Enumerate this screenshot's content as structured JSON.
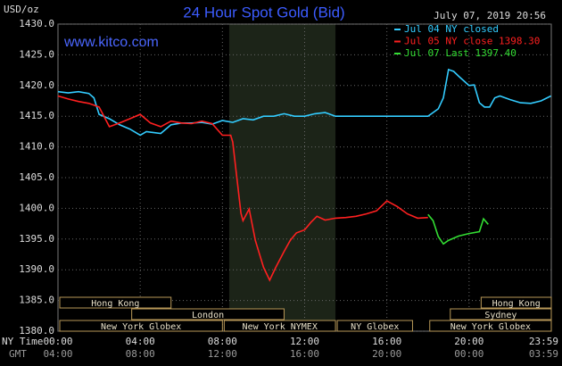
{
  "chart_data": {
    "type": "line",
    "title": "24 Hour Spot Gold (Bid)",
    "site": "www.kitco.com",
    "timestamp": "July 07, 2019 20:56",
    "y_label": "USD/oz",
    "x_row_label": "NY Time",
    "x2_row_label": "GMT",
    "xlim": [
      0,
      24
    ],
    "ylim": [
      1380,
      1430
    ],
    "yticks": [
      {
        "value": 1380,
        "label": "1380.0"
      },
      {
        "value": 1385,
        "label": "1385.0"
      },
      {
        "value": 1390,
        "label": "1390.0"
      },
      {
        "value": 1395,
        "label": "1395.0"
      },
      {
        "value": 1400,
        "label": "1400.0"
      },
      {
        "value": 1405,
        "label": "1405.0"
      },
      {
        "value": 1410,
        "label": "1410.0"
      },
      {
        "value": 1415,
        "label": "1415.0"
      },
      {
        "value": 1420,
        "label": "1420.0"
      },
      {
        "value": 1425,
        "label": "1425.0"
      },
      {
        "value": 1430,
        "label": "1430.0"
      }
    ],
    "xticks": [
      {
        "value": 0,
        "label": "00:00"
      },
      {
        "value": 4,
        "label": "04:00"
      },
      {
        "value": 8,
        "label": "08:00"
      },
      {
        "value": 12,
        "label": "12:00"
      },
      {
        "value": 16,
        "label": "16:00"
      },
      {
        "value": 20,
        "label": "20:00"
      },
      {
        "value": 23.983,
        "label": "23:59"
      }
    ],
    "x2ticks": [
      {
        "value": 0,
        "label": "04:00"
      },
      {
        "value": 4,
        "label": "08:00"
      },
      {
        "value": 8,
        "label": "12:00"
      },
      {
        "value": 12,
        "label": "16:00"
      },
      {
        "value": 16,
        "label": "20:00"
      },
      {
        "value": 20,
        "label": "00:00"
      },
      {
        "value": 23.983,
        "label": "03:59"
      }
    ],
    "grid": true,
    "shaded_region": [
      8.33,
      13.5
    ],
    "session_rows": [
      [
        {
          "label": "Hong Kong",
          "start": 0,
          "end": 5.5
        },
        {
          "label": "Hong Kong",
          "start": 20.5,
          "end": 24
        }
      ],
      [
        {
          "label": "London",
          "start": 3.5,
          "end": 11
        },
        {
          "label": "Sydney",
          "start": 19,
          "end": 24
        }
      ],
      [
        {
          "label": "New York Globex",
          "start": 0,
          "end": 8
        },
        {
          "label": "New York NYMEX",
          "start": 8,
          "end": 13.5
        },
        {
          "label": "NY Globex",
          "start": 13.5,
          "end": 17.25
        },
        {
          "label": "New York Globex",
          "start": 18,
          "end": 24
        }
      ]
    ],
    "series": [
      {
        "name": "Jul 04 NY closed",
        "color": "#33ccff",
        "x": [
          0,
          0.5,
          1,
          1.5,
          1.75,
          2,
          2.5,
          3,
          3.5,
          4,
          4.3,
          4.5,
          5,
          5.5,
          6,
          6.5,
          7,
          7.5,
          8,
          8.5,
          9,
          9.5,
          10,
          10.5,
          11,
          11.5,
          12,
          12.5,
          13,
          13.5,
          18,
          18.5,
          18.75,
          19,
          19.25,
          19.5,
          20,
          20.25,
          20.5,
          20.75,
          21,
          21.25,
          21.5,
          22,
          22.5,
          23,
          23.5,
          23.983
        ],
        "values": [
          1419.0,
          1418.8,
          1419.0,
          1418.7,
          1418.0,
          1415.3,
          1414.6,
          1413.6,
          1412.9,
          1411.9,
          1412.5,
          1412.4,
          1412.2,
          1413.6,
          1413.9,
          1413.9,
          1414.0,
          1413.7,
          1414.3,
          1414.0,
          1414.6,
          1414.4,
          1415.0,
          1415.0,
          1415.4,
          1415.0,
          1415.0,
          1415.4,
          1415.6,
          1415.0,
          1415.0,
          1416.2,
          1418.0,
          1422.6,
          1422.3,
          1421.5,
          1420.0,
          1420.1,
          1417.2,
          1416.5,
          1416.5,
          1418.0,
          1418.3,
          1417.7,
          1417.2,
          1417.1,
          1417.5,
          1418.3
        ]
      },
      {
        "name": "Jul 05 NY close 1398.30",
        "color": "#ff2020",
        "x": [
          0,
          0.5,
          1,
          1.5,
          2,
          2.5,
          3,
          3.5,
          4,
          4.5,
          5,
          5.5,
          6,
          6.5,
          7,
          7.5,
          8,
          8.4,
          8.5,
          8.7,
          8.9,
          9,
          9.3,
          9.6,
          10,
          10.3,
          10.6,
          11,
          11.3,
          11.6,
          12,
          12.3,
          12.6,
          13,
          13.5,
          14,
          14.5,
          15,
          15.5,
          16,
          16.5,
          17,
          17.5,
          18
        ],
        "values": [
          1418.3,
          1417.8,
          1417.4,
          1417.1,
          1416.5,
          1413.3,
          1413.9,
          1414.6,
          1415.3,
          1413.9,
          1413.3,
          1414.2,
          1413.9,
          1413.8,
          1414.2,
          1413.8,
          1411.9,
          1411.9,
          1410.8,
          1405.0,
          1399.2,
          1398.0,
          1399.9,
          1394.8,
          1390.4,
          1388.3,
          1390.4,
          1393.0,
          1394.8,
          1396.0,
          1396.5,
          1397.7,
          1398.7,
          1398.1,
          1398.4,
          1398.5,
          1398.7,
          1399.1,
          1399.6,
          1401.2,
          1400.3,
          1399.1,
          1398.4,
          1398.5
        ]
      },
      {
        "name": "Jul 07 Last 1397.40",
        "color": "#33dd33",
        "x": [
          18,
          18.25,
          18.5,
          18.75,
          19,
          19.5,
          20,
          20.5,
          20.7,
          20.93
        ],
        "values": [
          1399.0,
          1398.0,
          1395.4,
          1394.2,
          1394.8,
          1395.5,
          1395.9,
          1396.2,
          1398.3,
          1397.4
        ]
      }
    ]
  }
}
